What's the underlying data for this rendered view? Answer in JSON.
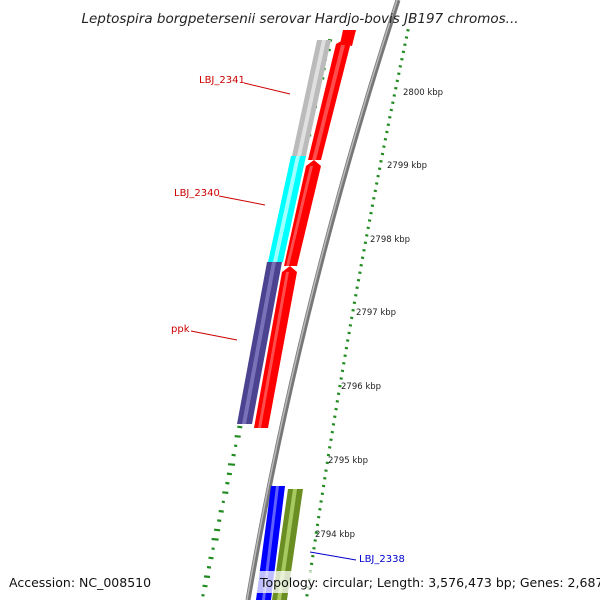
{
  "title": "Leptospira borgpetersenii serovar Hardjo-bovis JB197 chromos...",
  "footer": {
    "accession": "Accession: NC_008510",
    "topology": "Topology: circular; Length: 3,576,473 bp; Genes: 2,687"
  },
  "scale_labels": [
    {
      "text": "2800 kbp",
      "kbp": 2800
    },
    {
      "text": "2799 kbp",
      "kbp": 2799
    },
    {
      "text": "2798 kbp",
      "kbp": 2798
    },
    {
      "text": "2797 kbp",
      "kbp": 2797
    },
    {
      "text": "2796 kbp",
      "kbp": 2796
    },
    {
      "text": "2795 kbp",
      "kbp": 2795
    },
    {
      "text": "2794 kbp",
      "kbp": 2794
    }
  ],
  "gene_labels": [
    {
      "text": "LBJ_2341",
      "color": "#cc0000"
    },
    {
      "text": "LBJ_2340",
      "color": "#cc0000"
    },
    {
      "text": "ppk",
      "color": "#cc0000"
    },
    {
      "text": "LBJ_2338",
      "color": "#0000cc"
    }
  ],
  "colors": {
    "backbone": "#888888",
    "cog_red": "#ff0000",
    "gene_gray": "#bbbbbb",
    "gene_cyan": "#00ffff",
    "gene_purple": "#4b4290",
    "gene_blue": "#0000ff",
    "gene_olive": "#6b8e23",
    "gc_dots": "#228b22"
  }
}
